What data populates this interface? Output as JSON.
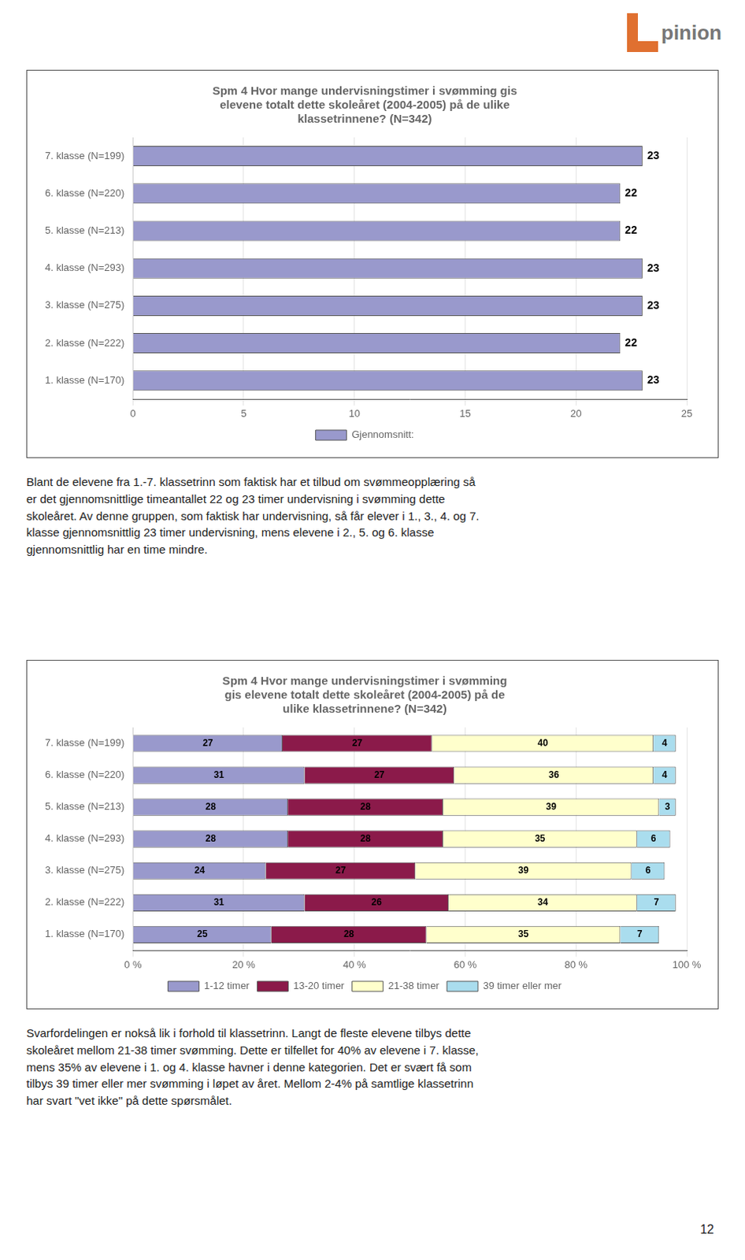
{
  "logo": "pinion",
  "paragraphs": [
    "Blant de elevene fra 1.-7. klassetrinn som faktisk har et tilbud om svømmeopplæring så\ner det gjennomsnittlige timeantallet  22 og 23 timer undervisning i svømming dette\nskoleåret. Av denne gruppen, som faktisk har undervisning, så får elever i 1., 3., 4. og 7.\nklasse gjennomsnittlig 23 timer undervisning, mens elevene i 2., 5. og 6. klasse\ngjennomsnittlig har en time mindre.",
    "Svarfordelingen er nokså lik i forhold til klassetrinn. Langt de fleste elevene tilbys dette\nskoleåret mellom 21-38 timer svømming. Dette er tilfellet for 40% av elevene i 7. klasse,\nmens 35% av elevene i 1. og 4. klasse havner i denne kategorien. Det er svært få som\ntilbys 39 timer eller mer svømming i løpet av året. Mellom 2-4% på samtlige klassetrinn\nhar svart \"vet ikke\" på dette spørsmålet."
  ],
  "page_number": "12",
  "chart_data": [
    {
      "type": "bar",
      "orientation": "horizontal",
      "title": "Spm 4 Hvor mange undervisningstimer i svømming gis\nelevene totalt dette skoleåret (2004-2005) på de ulike\nklassetrinnene? (N=342)",
      "categories": [
        "7. klasse (N=199)",
        "6. klasse (N=220)",
        "5. klasse (N=213)",
        "4. klasse (N=293)",
        "3. klasse (N=275)",
        "2. klasse (N=222)",
        "1. klasse (N=170)"
      ],
      "series": [
        {
          "name": "Gjennomsnitt:",
          "color": "#9999cc",
          "values": [
            23,
            22,
            22,
            23,
            23,
            22,
            23
          ]
        }
      ],
      "xlim": [
        0,
        25
      ],
      "xticks": [
        0,
        5,
        10,
        15,
        20,
        25
      ],
      "grid": true,
      "legend": "bottom",
      "data_labels": true
    },
    {
      "type": "bar",
      "orientation": "horizontal",
      "stacked": true,
      "title": "Spm 4 Hvor mange undervisningstimer i svømming\ngis elevene totalt dette skoleåret (2004-2005) på de\nulike klassetrinnene? (N=342)",
      "categories": [
        "7. klasse (N=199)",
        "6. klasse (N=220)",
        "5. klasse (N=213)",
        "4. klasse (N=293)",
        "3. klasse (N=275)",
        "2. klasse (N=222)",
        "1. klasse (N=170)"
      ],
      "series": [
        {
          "name": "1-12 timer",
          "color": "#9999cc",
          "values": [
            27,
            31,
            28,
            28,
            24,
            31,
            25
          ]
        },
        {
          "name": "13-20 timer",
          "color": "#8b1a4a",
          "values": [
            27,
            27,
            28,
            28,
            27,
            26,
            28
          ]
        },
        {
          "name": "21-38 timer",
          "color": "#ffffcc",
          "values": [
            40,
            36,
            39,
            35,
            39,
            34,
            35
          ]
        },
        {
          "name": "39 timer eller mer",
          "color": "#aaddee",
          "values": [
            4,
            4,
            3,
            6,
            6,
            7,
            7
          ]
        }
      ],
      "xlim": [
        0,
        100
      ],
      "xticks": [
        {
          "value": 0,
          "label": "0 %"
        },
        {
          "value": 20,
          "label": "20 %"
        },
        {
          "value": 40,
          "label": "40 %"
        },
        {
          "value": 60,
          "label": "60 %"
        },
        {
          "value": 80,
          "label": "80 %"
        },
        {
          "value": 100,
          "label": "100 %"
        }
      ],
      "grid": true,
      "legend": "bottom",
      "data_labels": true
    }
  ]
}
